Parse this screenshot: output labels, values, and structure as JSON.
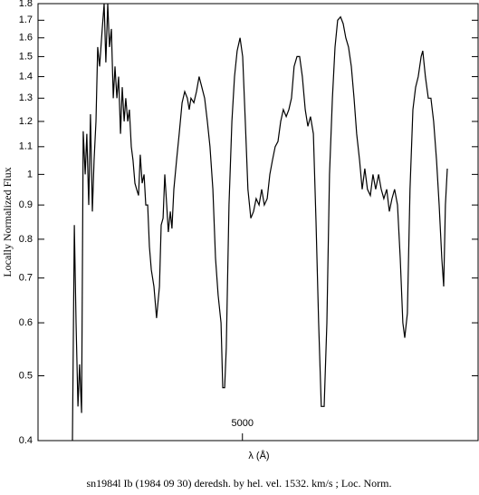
{
  "chart_data": {
    "type": "line",
    "ylabel": "Locally Normalized Flux",
    "xlabel": "λ (Å)",
    "caption": "sn1984l Ib (1984 09 30) deredsh. by hel. vel.  1532. km/s ;  Loc. Norm.",
    "ylog": true,
    "xlim": [
      4150,
      5980
    ],
    "xticks": [
      5000
    ],
    "ylim": [
      0.4,
      1.8
    ],
    "yticks": [
      0.4,
      0.5,
      0.6,
      0.7,
      0.8,
      0.9,
      1,
      1.1,
      1.2,
      1.3,
      1.4,
      1.5,
      1.6,
      1.7,
      1.8
    ],
    "series": [
      {
        "color": "#000000",
        "x": [
          4293,
          4301,
          4308,
          4316,
          4323,
          4331,
          4338,
          4346,
          4353,
          4361,
          4368,
          4376,
          4383,
          4391,
          4398,
          4406,
          4417,
          4425,
          4432,
          4440,
          4447,
          4455,
          4463,
          4470,
          4478,
          4485,
          4493,
          4500,
          4508,
          4515,
          4523,
          4530,
          4538,
          4545,
          4553,
          4560,
          4568,
          4575,
          4583,
          4591,
          4598,
          4606,
          4613,
          4621,
          4632,
          4643,
          4655,
          4662,
          4670,
          4677,
          4685,
          4692,
          4700,
          4707,
          4715,
          4726,
          4737,
          4749,
          4760,
          4771,
          4779,
          4786,
          4798,
          4809,
          4820,
          4831,
          4843,
          4854,
          4865,
          4877,
          4888,
          4899,
          4911,
          4918,
          4926,
          4933,
          4944,
          4956,
          4967,
          4978,
          4990,
          5001,
          5012,
          5023,
          5035,
          5046,
          5057,
          5069,
          5080,
          5091,
          5103,
          5114,
          5125,
          5136,
          5148,
          5159,
          5170,
          5182,
          5193,
          5204,
          5215,
          5227,
          5238,
          5249,
          5261,
          5272,
          5283,
          5295,
          5306,
          5317,
          5328,
          5340,
          5351,
          5362,
          5374,
          5385,
          5396,
          5408,
          5419,
          5430,
          5441,
          5453,
          5464,
          5475,
          5487,
          5498,
          5509,
          5520,
          5532,
          5543,
          5554,
          5566,
          5577,
          5588,
          5600,
          5611,
          5622,
          5633,
          5645,
          5656,
          5667,
          5675,
          5686,
          5697,
          5709,
          5720,
          5731,
          5743,
          5750,
          5761,
          5773,
          5784,
          5795,
          5807,
          5818,
          5829,
          5837,
          5844,
          5852
        ],
        "values": [
          0.4,
          0.84,
          0.6,
          0.45,
          0.52,
          0.44,
          1.16,
          1.0,
          1.15,
          0.9,
          1.23,
          0.88,
          1.05,
          1.2,
          1.55,
          1.45,
          1.65,
          1.8,
          1.47,
          1.8,
          1.55,
          1.65,
          1.3,
          1.45,
          1.3,
          1.4,
          1.15,
          1.35,
          1.2,
          1.3,
          1.2,
          1.25,
          1.1,
          1.05,
          0.97,
          0.95,
          0.93,
          1.07,
          0.97,
          1.0,
          0.9,
          0.9,
          0.78,
          0.72,
          0.68,
          0.61,
          0.68,
          0.84,
          0.86,
          1.0,
          0.9,
          0.82,
          0.88,
          0.83,
          0.95,
          1.05,
          1.15,
          1.28,
          1.33,
          1.3,
          1.25,
          1.3,
          1.28,
          1.33,
          1.4,
          1.35,
          1.3,
          1.2,
          1.1,
          0.95,
          0.75,
          0.66,
          0.6,
          0.48,
          0.48,
          0.55,
          0.9,
          1.2,
          1.4,
          1.53,
          1.6,
          1.5,
          1.2,
          0.95,
          0.86,
          0.88,
          0.92,
          0.9,
          0.95,
          0.9,
          0.92,
          1.0,
          1.05,
          1.1,
          1.12,
          1.2,
          1.25,
          1.22,
          1.25,
          1.3,
          1.45,
          1.5,
          1.5,
          1.4,
          1.25,
          1.18,
          1.22,
          1.15,
          0.85,
          0.6,
          0.45,
          0.45,
          0.6,
          1.0,
          1.3,
          1.55,
          1.7,
          1.72,
          1.68,
          1.6,
          1.55,
          1.45,
          1.3,
          1.15,
          1.05,
          0.95,
          1.02,
          0.95,
          0.93,
          1.0,
          0.95,
          1.0,
          0.95,
          0.92,
          0.95,
          0.88,
          0.92,
          0.95,
          0.9,
          0.75,
          0.6,
          0.57,
          0.62,
          0.95,
          1.25,
          1.35,
          1.4,
          1.5,
          1.53,
          1.4,
          1.3,
          1.3,
          1.2,
          1.05,
          0.9,
          0.75,
          0.68,
          0.9,
          1.02
        ]
      }
    ]
  }
}
